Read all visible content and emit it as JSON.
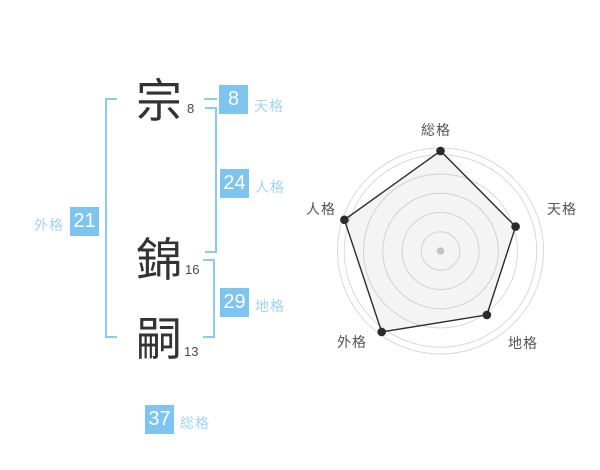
{
  "page": {
    "background": "#ffffff"
  },
  "name_diagram": {
    "characters": [
      {
        "char": "宗",
        "strokes": "8"
      },
      {
        "char": "錦",
        "strokes": "16"
      },
      {
        "char": "嗣",
        "strokes": "13"
      }
    ],
    "gokaku": {
      "tenkaku": {
        "label": "天格",
        "value": "8"
      },
      "jinkaku": {
        "label": "人格",
        "value": "24"
      },
      "chikaku": {
        "label": "地格",
        "value": "29"
      },
      "gaikaku": {
        "label": "外格",
        "value": "21"
      },
      "soukaku": {
        "label": "総格",
        "value": "37"
      }
    },
    "colors": {
      "box_bg": "#7dc4f0",
      "box_text": "#ffffff",
      "label_text": "#9fd4f4",
      "bracket": "#8acbf2",
      "kanji": "#333333",
      "stroke_count": "#4a4a4a"
    }
  },
  "chart_data": {
    "type": "radar",
    "axes": [
      "総格",
      "天格",
      "地格",
      "外格",
      "人格"
    ],
    "values": [
      5.2,
      4.1,
      4.1,
      5.2,
      5.25
    ],
    "scale_max": 5.35,
    "rings": 5,
    "grid": "concentric-circles",
    "spokes": false,
    "legend": false,
    "start_angle": "top",
    "direction": "clockwise",
    "colors": {
      "ring": "#d9d9d9",
      "polygon_stroke": "#2b2b2b",
      "polygon_fill": "rgba(150,150,150,0.10)",
      "vertex_dot": "#2b2b2b",
      "center_dot": "#c4c4c4",
      "axis_label": "#555555"
    }
  }
}
